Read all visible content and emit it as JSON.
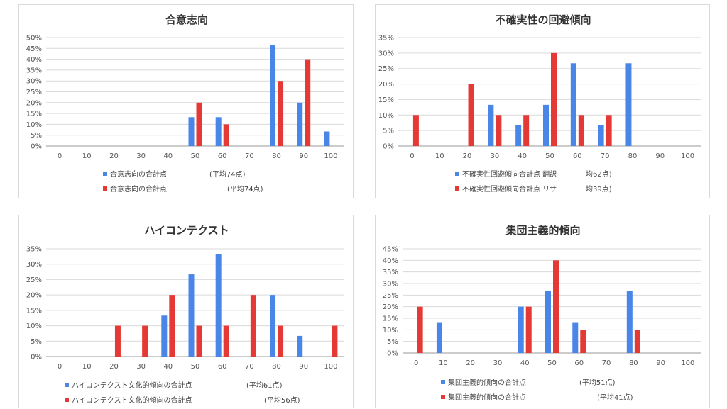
{
  "chart_data": [
    {
      "type": "bar",
      "title": "合意志向",
      "categories": [
        "0",
        "10",
        "20",
        "30",
        "40",
        "50",
        "60",
        "70",
        "80",
        "90",
        "100"
      ],
      "ylim": [
        0,
        50
      ],
      "yticks": [
        "0%",
        "5%",
        "10%",
        "15%",
        "20%",
        "25%",
        "30%",
        "35%",
        "40%",
        "45%",
        "50%"
      ],
      "series": [
        {
          "name": "合意志向の合計点",
          "avg": "(平均74点)",
          "color": "#4a86e8",
          "values": [
            0,
            0,
            0,
            0,
            0,
            13.3,
            13.3,
            0,
            46.7,
            20,
            6.7
          ]
        },
        {
          "name": "合意志向の合計点",
          "avg": "(平均74点)",
          "color": "#e53935",
          "values": [
            0,
            0,
            0,
            0,
            0,
            20,
            10,
            0,
            30,
            40,
            0
          ]
        }
      ]
    },
    {
      "type": "bar",
      "title": "不確実性の回避傾向",
      "categories": [
        "0",
        "10",
        "20",
        "30",
        "40",
        "50",
        "60",
        "70",
        "80",
        "90",
        "100"
      ],
      "ylim": [
        0,
        35
      ],
      "yticks": [
        "0%",
        "5%",
        "10%",
        "15%",
        "20%",
        "25%",
        "30%",
        "35%"
      ],
      "series": [
        {
          "name": "不確実性回避傾向合計点 翻訳",
          "avg": "均62点)",
          "color": "#4a86e8",
          "values": [
            0,
            0,
            0,
            13.3,
            6.7,
            13.3,
            26.7,
            6.7,
            26.7,
            0,
            0
          ]
        },
        {
          "name": "不確実性回避傾向合計点 リサ",
          "avg": "均39点)",
          "color": "#e53935",
          "values": [
            10,
            0,
            20,
            10,
            10,
            30,
            10,
            10,
            0,
            0,
            0
          ]
        }
      ]
    },
    {
      "type": "bar",
      "title": "ハイコンテクスト",
      "categories": [
        "0",
        "10",
        "20",
        "30",
        "40",
        "50",
        "60",
        "70",
        "80",
        "90",
        "100"
      ],
      "ylim": [
        0,
        35
      ],
      "yticks": [
        "0%",
        "5%",
        "10%",
        "15%",
        "20%",
        "25%",
        "30%",
        "35%"
      ],
      "series": [
        {
          "name": "ハイコンテクスト文化的傾向の合計点",
          "avg": "(平均61点)",
          "color": "#4a86e8",
          "values": [
            0,
            0,
            0,
            0,
            13.3,
            26.7,
            33.3,
            0,
            20,
            6.7,
            0
          ]
        },
        {
          "name": "ハイコンテクスト文化的傾向の合計点",
          "avg": "(平均56点)",
          "color": "#e53935",
          "values": [
            0,
            0,
            10,
            10,
            20,
            10,
            10,
            20,
            10,
            0,
            10
          ]
        }
      ]
    },
    {
      "type": "bar",
      "title": "集団主義的傾向",
      "categories": [
        "0",
        "10",
        "20",
        "30",
        "40",
        "50",
        "60",
        "70",
        "80",
        "90",
        "100"
      ],
      "ylim": [
        0,
        45
      ],
      "yticks": [
        "0%",
        "5%",
        "10%",
        "15%",
        "20%",
        "25%",
        "30%",
        "35%",
        "40%",
        "45%"
      ],
      "series": [
        {
          "name": "集団主義的傾向の合計点",
          "avg": "(平均51点)",
          "color": "#4a86e8",
          "values": [
            0,
            13.3,
            0,
            0,
            20,
            26.7,
            13.3,
            0,
            26.7,
            0,
            0
          ]
        },
        {
          "name": "集団主義的傾向の合計点",
          "avg": "(平均41点)",
          "color": "#e53935",
          "values": [
            20,
            0,
            0,
            0,
            20,
            40,
            10,
            0,
            10,
            0,
            0
          ]
        }
      ]
    }
  ]
}
